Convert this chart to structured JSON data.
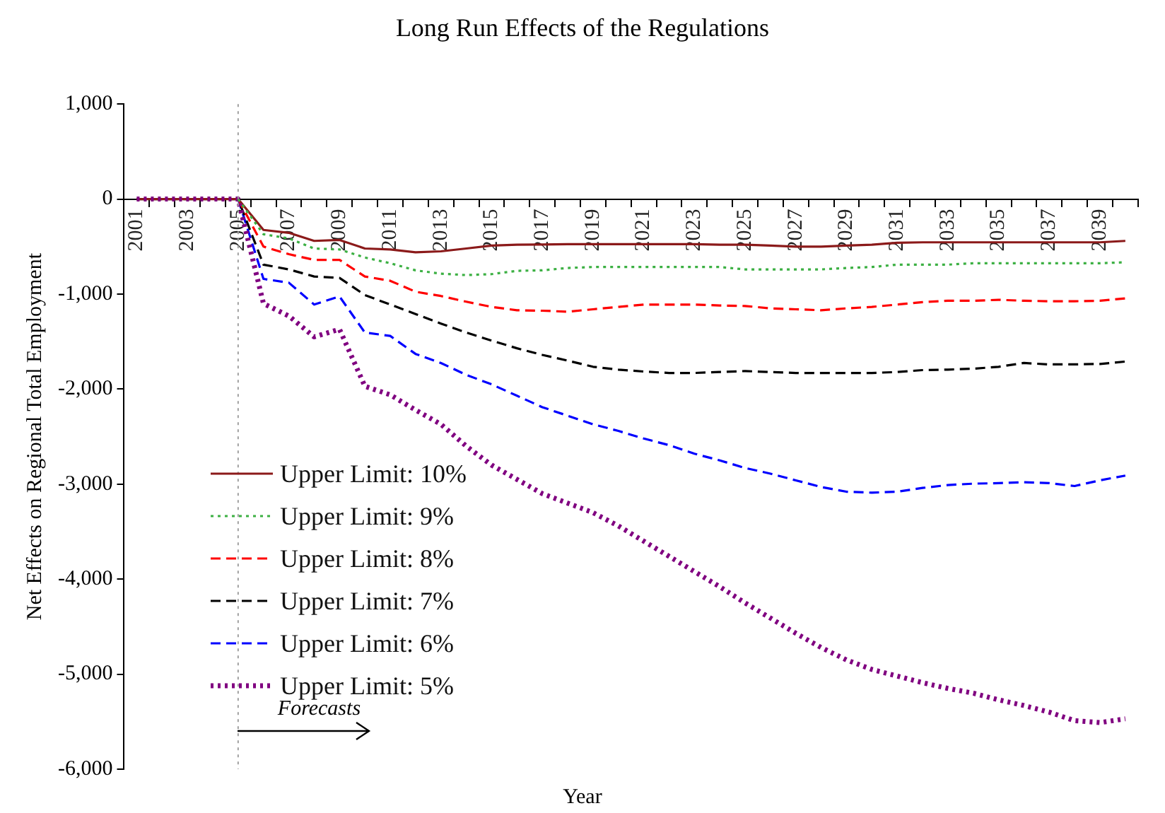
{
  "chart_data": {
    "type": "line",
    "title": "Long Run Effects of the Regulations",
    "xlabel": "Year",
    "ylabel": "Net Effects on Regional Total Employment",
    "categories": [
      "2001",
      null,
      "2003",
      null,
      "2005",
      null,
      "2007",
      null,
      "2009",
      null,
      "2011",
      null,
      "2013",
      null,
      "2015",
      null,
      "2017",
      null,
      "2019",
      null,
      "2021",
      null,
      "2023",
      null,
      "2025",
      null,
      "2027",
      null,
      "2029",
      null,
      "2031",
      null,
      "2033",
      null,
      "2035",
      null,
      "2037",
      null,
      "2039",
      null
    ],
    "ylim": [
      -6000,
      1000
    ],
    "yticks": [
      {
        "value": 1000,
        "label": "1,000"
      },
      {
        "value": 0,
        "label": "0"
      },
      {
        "value": -1000,
        "label": "-1,000"
      },
      {
        "value": -2000,
        "label": "-2,000"
      },
      {
        "value": -3000,
        "label": "-3,000"
      },
      {
        "value": -4000,
        "label": "-4,000"
      },
      {
        "value": -5000,
        "label": "-5,000"
      },
      {
        "value": -6000,
        "label": "-6,000"
      }
    ],
    "grid": false,
    "legend": "left",
    "marker": "none",
    "series": [
      {
        "name": "Upper Limit: 10%",
        "color": "#8b1a1a",
        "line_style": "solid",
        "values": [
          0,
          0,
          0,
          0,
          0,
          -325,
          -355,
          -440,
          -430,
          -520,
          -530,
          -560,
          -550,
          -520,
          -490,
          -480,
          -478,
          -475,
          -475,
          -475,
          -475,
          -475,
          -475,
          -480,
          -480,
          -490,
          -500,
          -500,
          -490,
          -480,
          -460,
          -455,
          -455,
          -455,
          -455,
          -455,
          -455,
          -455,
          -455,
          -440
        ]
      },
      {
        "name": "Upper Limit: 9%",
        "color": "#3cb043",
        "line_style": "dotted",
        "values": [
          null,
          null,
          null,
          null,
          0,
          -370,
          -414,
          -520,
          -530,
          -615,
          -675,
          -750,
          -785,
          -800,
          -790,
          -755,
          -750,
          -725,
          -715,
          -715,
          -715,
          -715,
          -715,
          -715,
          -740,
          -740,
          -740,
          -740,
          -725,
          -715,
          -690,
          -690,
          -690,
          -675,
          -675,
          -675,
          -675,
          -675,
          -675,
          -665
        ]
      },
      {
        "name": "Upper Limit: 8%",
        "color": "#ff0000",
        "line_style": "dashed",
        "values": [
          null,
          null,
          null,
          null,
          0,
          -500,
          -580,
          -640,
          -640,
          -815,
          -860,
          -975,
          -1020,
          -1080,
          -1135,
          -1170,
          -1175,
          -1185,
          -1160,
          -1135,
          -1110,
          -1110,
          -1110,
          -1120,
          -1125,
          -1150,
          -1160,
          -1170,
          -1150,
          -1135,
          -1110,
          -1085,
          -1070,
          -1070,
          -1060,
          -1070,
          -1075,
          -1075,
          -1070,
          -1045
        ]
      },
      {
        "name": "Upper Limit: 7%",
        "color": "#000000",
        "line_style": "dashed",
        "values": [
          0,
          0,
          0,
          0,
          0,
          -690,
          -740,
          -815,
          -830,
          -1010,
          -1110,
          -1210,
          -1310,
          -1405,
          -1490,
          -1570,
          -1640,
          -1700,
          -1765,
          -1795,
          -1815,
          -1830,
          -1830,
          -1820,
          -1810,
          -1820,
          -1830,
          -1830,
          -1830,
          -1830,
          -1820,
          -1800,
          -1795,
          -1785,
          -1765,
          -1725,
          -1740,
          -1740,
          -1735,
          -1710
        ]
      },
      {
        "name": "Upper Limit: 6%",
        "color": "#0000ff",
        "line_style": "dashed",
        "values": [
          null,
          null,
          null,
          null,
          0,
          -840,
          -880,
          -1110,
          -1025,
          -1405,
          -1440,
          -1630,
          -1725,
          -1850,
          -1950,
          -2070,
          -2190,
          -2280,
          -2370,
          -2440,
          -2520,
          -2590,
          -2680,
          -2750,
          -2830,
          -2890,
          -2960,
          -3030,
          -3080,
          -3090,
          -3080,
          -3040,
          -3010,
          -2995,
          -2990,
          -2980,
          -2990,
          -3020,
          -2960,
          -2910
        ]
      },
      {
        "name": "Upper Limit: 5%",
        "color": "#800080",
        "line_style": "dotted",
        "values": [
          0,
          0,
          0,
          0,
          0,
          -1100,
          -1230,
          -1450,
          -1370,
          -1970,
          -2060,
          -2220,
          -2370,
          -2600,
          -2800,
          -2950,
          -3100,
          -3200,
          -3300,
          -3440,
          -3600,
          -3760,
          -3920,
          -4080,
          -4250,
          -4410,
          -4570,
          -4720,
          -4850,
          -4950,
          -5020,
          -5090,
          -5150,
          -5200,
          -5270,
          -5330,
          -5400,
          -5490,
          -5510,
          -5470
        ]
      }
    ],
    "ref_lines": [
      {
        "axis": "x",
        "value": "2005",
        "color": "#a0a0a0",
        "line_style": "dotted"
      }
    ],
    "annotations": [
      {
        "text": "Forecasts",
        "x": "2005",
        "y": -5600
      }
    ]
  }
}
